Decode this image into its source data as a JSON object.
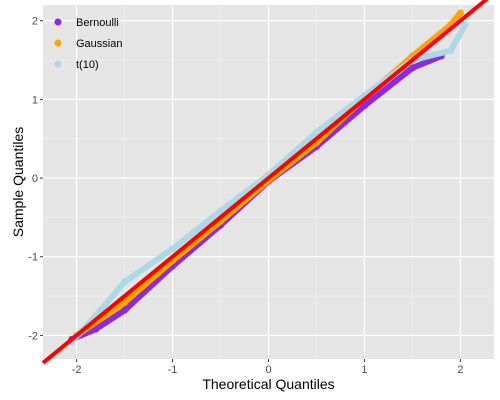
{
  "chart_data": {
    "type": "scatter",
    "xlabel": "Theoretical Quantiles",
    "ylabel": "Sample Quantiles",
    "xlim": [
      -2.35,
      2.35
    ],
    "ylim": [
      -2.3,
      2.2
    ],
    "x_ticks": [
      -2,
      -1,
      0,
      1,
      2
    ],
    "y_ticks": [
      -2,
      -1,
      0,
      1,
      2
    ],
    "x_tick_labels": [
      "-2",
      "-1",
      "0",
      "1",
      "2"
    ],
    "y_tick_labels": [
      "-2",
      "-1",
      "0",
      "1",
      "2"
    ],
    "grid": true,
    "legend_position": "top-left",
    "background": "#e5e5e5",
    "series": [
      {
        "name": "Bernoulli",
        "color": "#8a2be2",
        "points": [
          [
            -2.05,
            -2.05
          ],
          [
            -1.8,
            -1.92
          ],
          [
            -1.5,
            -1.68
          ],
          [
            -1.0,
            -1.12
          ],
          [
            -0.5,
            -0.6
          ],
          [
            0.0,
            -0.04
          ],
          [
            0.5,
            0.4
          ],
          [
            1.0,
            0.92
          ],
          [
            1.5,
            1.4
          ],
          [
            1.8,
            1.55
          ]
        ]
      },
      {
        "name": "Gaussian",
        "color": "#ffa500",
        "points": [
          [
            -2.0,
            -2.0
          ],
          [
            -1.5,
            -1.58
          ],
          [
            -1.0,
            -1.05
          ],
          [
            -0.5,
            -0.55
          ],
          [
            0.0,
            -0.03
          ],
          [
            0.5,
            0.45
          ],
          [
            1.0,
            1.02
          ],
          [
            1.5,
            1.55
          ],
          [
            1.9,
            1.95
          ],
          [
            2.0,
            2.1
          ]
        ]
      },
      {
        "name": "t(10)",
        "color": "#add8e6",
        "points": [
          [
            -2.05,
            -2.08
          ],
          [
            -1.8,
            -1.75
          ],
          [
            -1.5,
            -1.32
          ],
          [
            -1.0,
            -0.9
          ],
          [
            -0.5,
            -0.42
          ],
          [
            0.0,
            0.04
          ],
          [
            0.5,
            0.58
          ],
          [
            1.0,
            1.05
          ],
          [
            1.5,
            1.5
          ],
          [
            1.9,
            1.62
          ],
          [
            2.05,
            1.95
          ]
        ]
      }
    ],
    "reference_line": {
      "color": "#ff0000",
      "slope": 1.0,
      "intercept": 0.0
    }
  }
}
